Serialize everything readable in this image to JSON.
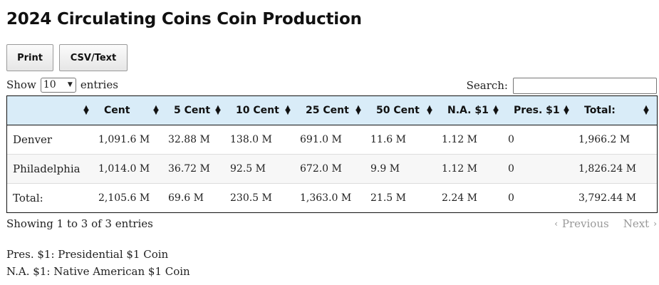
{
  "title": "2024 Circulating Coins Coin Production",
  "toolbar": {
    "print_label": "Print",
    "csv_label": "CSV/Text"
  },
  "length": {
    "show_label": "Show",
    "selected": "10",
    "entries_label": "entries"
  },
  "search": {
    "label": "Search:",
    "value": ""
  },
  "table": {
    "headers": [
      "",
      "Cent",
      "5 Cent",
      "10 Cent",
      "25 Cent",
      "50 Cent",
      "N.A. $1",
      "Pres. $1",
      "Total:"
    ],
    "rows": [
      [
        "Denver",
        "1,091.6 M",
        "32.88 M",
        "138.0 M",
        "691.0 M",
        "11.6 M",
        "1.12 M",
        "0",
        "1,966.2 M"
      ],
      [
        "Philadelphia",
        "1,014.0 M",
        "36.72 M",
        "92.5 M",
        "672.0 M",
        "9.9 M",
        "1.12 M",
        "0",
        "1,826.24 M"
      ],
      [
        "Total:",
        "2,105.6 M",
        "69.6 M",
        "230.5 M",
        "1,363.0 M",
        "21.5 M",
        "2.24 M",
        "0",
        "3,792.44 M"
      ]
    ]
  },
  "info": "Showing 1 to 3 of 3 entries",
  "pager": {
    "previous": "Previous",
    "next": "Next"
  },
  "notes": [
    "Pres. $1: Presidential $1 Coin",
    "N.A. $1: Native American $1 Coin"
  ],
  "icons": {
    "sort": "sort-icon",
    "select_arrow": "chevron-down-icon",
    "prev": "chevron-left-icon",
    "next": "chevron-right-icon"
  },
  "colors": {
    "header_bg": "#d9ecf8",
    "row_alt_bg": "#f7f7f7",
    "disabled_text": "#999999"
  }
}
